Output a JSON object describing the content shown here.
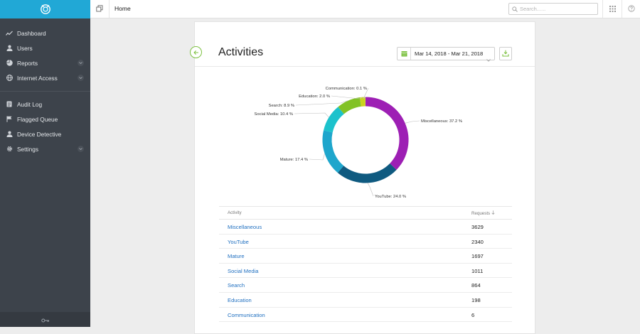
{
  "colors": {
    "accent": "#21a8d6",
    "green": "#7dc142",
    "link": "#1f6fc0",
    "sidebar": "#3d434b"
  },
  "sidebar": {
    "groups": [
      [
        {
          "label": "Dashboard",
          "icon": "chart-line-icon",
          "chevron": false
        },
        {
          "label": "Users",
          "icon": "user-icon",
          "chevron": false
        },
        {
          "label": "Reports",
          "icon": "pie-chart-icon",
          "chevron": true
        },
        {
          "label": "Internet Access",
          "icon": "globe-icon",
          "chevron": true
        }
      ],
      [
        {
          "label": "Audit Log",
          "icon": "audit-log-icon",
          "chevron": false
        },
        {
          "label": "Flagged Queue",
          "icon": "flag-icon",
          "chevron": false
        },
        {
          "label": "Device Detective",
          "icon": "user-icon",
          "chevron": false
        },
        {
          "label": "Settings",
          "icon": "gear-icon",
          "chevron": true
        }
      ]
    ]
  },
  "topbar": {
    "title": "Home",
    "search_placeholder": "Search......"
  },
  "page": {
    "title": "Activities",
    "date_range": "Mar 14, 2018 - Mar 21, 2018"
  },
  "chart_data": {
    "type": "pie",
    "donut": true,
    "slices": [
      {
        "label": "Miscellaneous",
        "value": 37.2,
        "color": "#9d1fb4",
        "text": "Miscellaneous: 37.2 %"
      },
      {
        "label": "YouTube",
        "value": 24.0,
        "color": "#0f5a80",
        "text": "YouTube: 24.0 %"
      },
      {
        "label": "Mature",
        "value": 17.4,
        "color": "#1ea6cc",
        "text": "Mature: 17.4 %"
      },
      {
        "label": "Social Media",
        "value": 10.4,
        "color": "#1cc2cc",
        "text": "Social Media: 10.4 %"
      },
      {
        "label": "Search",
        "value": 8.9,
        "color": "#82c226",
        "text": "Search: 8.9 %"
      },
      {
        "label": "Education",
        "value": 2.0,
        "color": "#c9d41e",
        "text": "Education: 2.0 %"
      },
      {
        "label": "Communication",
        "value": 0.1,
        "color": "#e8d03a",
        "text": "Communication: 0.1 %"
      }
    ]
  },
  "table": {
    "headers": [
      "Activity",
      "Requests"
    ],
    "rows": [
      {
        "activity": "Miscellaneous",
        "requests": "3629"
      },
      {
        "activity": "YouTube",
        "requests": "2340"
      },
      {
        "activity": "Mature",
        "requests": "1697"
      },
      {
        "activity": "Social Media",
        "requests": "1011"
      },
      {
        "activity": "Search",
        "requests": "864"
      },
      {
        "activity": "Education",
        "requests": "198"
      },
      {
        "activity": "Communication",
        "requests": "6"
      }
    ]
  }
}
